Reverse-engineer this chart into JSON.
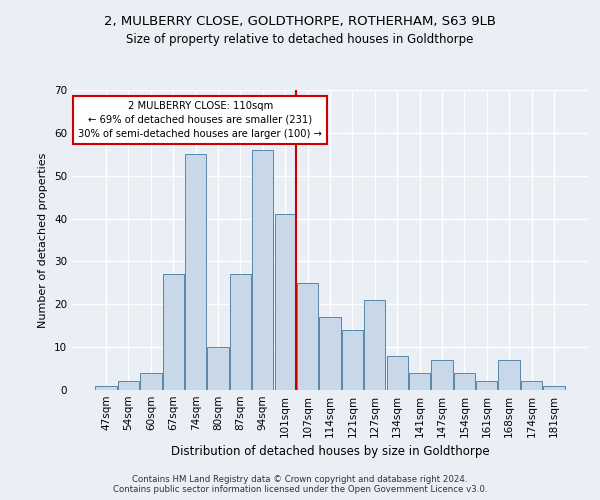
{
  "title1": "2, MULBERRY CLOSE, GOLDTHORPE, ROTHERHAM, S63 9LB",
  "title2": "Size of property relative to detached houses in Goldthorpe",
  "xlabel": "Distribution of detached houses by size in Goldthorpe",
  "ylabel": "Number of detached properties",
  "footnote1": "Contains HM Land Registry data © Crown copyright and database right 2024.",
  "footnote2": "Contains public sector information licensed under the Open Government Licence v3.0.",
  "categories": [
    "47sqm",
    "54sqm",
    "60sqm",
    "67sqm",
    "74sqm",
    "80sqm",
    "87sqm",
    "94sqm",
    "101sqm",
    "107sqm",
    "114sqm",
    "121sqm",
    "127sqm",
    "134sqm",
    "141sqm",
    "147sqm",
    "154sqm",
    "161sqm",
    "168sqm",
    "174sqm",
    "181sqm"
  ],
  "values": [
    1,
    2,
    4,
    27,
    55,
    10,
    27,
    56,
    41,
    25,
    17,
    14,
    21,
    8,
    4,
    7,
    4,
    2,
    7,
    2,
    1
  ],
  "bar_color": "#c8d8e8",
  "bar_edge_color": "#5588aa",
  "background_color": "#eaeef5",
  "grid_color": "#ffffff",
  "property_label": "2 MULBERRY CLOSE: 110sqm",
  "annotation_line1": "← 69% of detached houses are smaller (231)",
  "annotation_line2": "30% of semi-detached houses are larger (100) →",
  "vline_color": "#cc0000",
  "annotation_box_color": "#cc0000",
  "vline_position": 8.5,
  "ylim": [
    0,
    70
  ],
  "yticks": [
    0,
    10,
    20,
    30,
    40,
    50,
    60,
    70
  ]
}
